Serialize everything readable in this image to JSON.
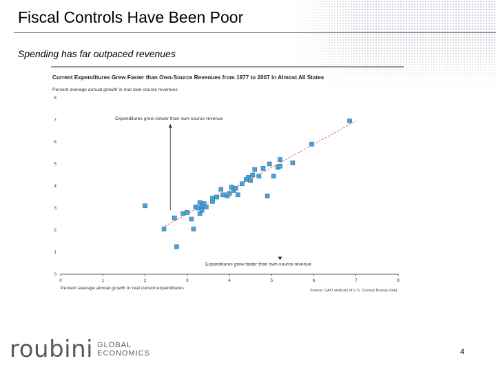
{
  "slide": {
    "title": "Fiscal Controls Have Been Poor",
    "subtitle": "Spending has far outpaced revenues",
    "page_number": "4"
  },
  "logo": {
    "wordmark": "roubini",
    "line1": "GLOBAL",
    "line2": "ECONOMICS"
  },
  "colors": {
    "marker_fill": "#4aa3d8",
    "marker_stroke": "#2a6f9a",
    "trend_line": "#e06c6c",
    "header_bar": "#9a9a9a"
  },
  "chart_data": {
    "type": "scatter",
    "title": "Current Expenditures Grew Faster than Own-Source Revenues from 1977 to 2007 in Almost All States",
    "ylabel": "Percent average annual growth in real own-source revenues",
    "xlabel": "Percent average annual growth in real current expenditures",
    "source": "Source: GAO analysis of U.S. Census Bureau data.",
    "xlim": [
      0,
      8
    ],
    "ylim": [
      0,
      8
    ],
    "x_ticks": [
      0,
      1,
      2,
      3,
      4,
      5,
      6,
      7,
      8
    ],
    "y_ticks": [
      0,
      1,
      2,
      3,
      4,
      5,
      6,
      7,
      8
    ],
    "x_tick_labels": [
      "0",
      "1",
      "2",
      "3",
      "4",
      "5",
      "6",
      "7",
      "8"
    ],
    "y_tick_labels": [
      "0",
      "1",
      "2",
      "3",
      "4",
      "5",
      "6",
      "7",
      "8"
    ],
    "grid": false,
    "trend_line": {
      "from": [
        2.4,
        2.1
      ],
      "to": [
        7.0,
        6.95
      ]
    },
    "annotations": [
      {
        "text": "Expenditures grew slower than own-source revenue",
        "arrow": "up",
        "anchor": [
          2.6,
          7.0
        ],
        "arrow_from": [
          2.6,
          2.9
        ],
        "arrow_to": [
          2.6,
          6.7
        ]
      },
      {
        "text": "Expenditures grew faster than own-source revenue",
        "arrow": "down",
        "anchor": [
          4.9,
          0.45
        ],
        "arrow_from": [
          5.2,
          0.9
        ],
        "arrow_to": [
          5.2,
          0.7
        ]
      }
    ],
    "points": [
      {
        "x": 2.0,
        "y": 3.1
      },
      {
        "x": 2.45,
        "y": 2.05
      },
      {
        "x": 2.7,
        "y": 2.55
      },
      {
        "x": 2.75,
        "y": 1.25
      },
      {
        "x": 2.9,
        "y": 2.75
      },
      {
        "x": 3.0,
        "y": 2.8
      },
      {
        "x": 3.1,
        "y": 2.5
      },
      {
        "x": 3.15,
        "y": 2.05
      },
      {
        "x": 3.2,
        "y": 3.05
      },
      {
        "x": 3.25,
        "y": 3.0
      },
      {
        "x": 3.3,
        "y": 3.25
      },
      {
        "x": 3.35,
        "y": 3.1
      },
      {
        "x": 3.3,
        "y": 2.75
      },
      {
        "x": 3.35,
        "y": 2.9
      },
      {
        "x": 3.4,
        "y": 3.2
      },
      {
        "x": 3.45,
        "y": 3.05
      },
      {
        "x": 3.6,
        "y": 3.3
      },
      {
        "x": 3.6,
        "y": 3.45
      },
      {
        "x": 3.7,
        "y": 3.5
      },
      {
        "x": 3.8,
        "y": 3.85
      },
      {
        "x": 3.85,
        "y": 3.6
      },
      {
        "x": 3.95,
        "y": 3.55
      },
      {
        "x": 4.0,
        "y": 3.65
      },
      {
        "x": 4.05,
        "y": 3.95
      },
      {
        "x": 4.1,
        "y": 3.8
      },
      {
        "x": 4.15,
        "y": 3.9
      },
      {
        "x": 4.2,
        "y": 3.6
      },
      {
        "x": 4.3,
        "y": 4.1
      },
      {
        "x": 4.4,
        "y": 4.3
      },
      {
        "x": 4.45,
        "y": 4.4
      },
      {
        "x": 4.5,
        "y": 4.25
      },
      {
        "x": 4.55,
        "y": 4.5
      },
      {
        "x": 4.6,
        "y": 4.75
      },
      {
        "x": 4.7,
        "y": 4.45
      },
      {
        "x": 4.8,
        "y": 4.8
      },
      {
        "x": 4.9,
        "y": 3.55
      },
      {
        "x": 4.95,
        "y": 5.0
      },
      {
        "x": 5.05,
        "y": 4.45
      },
      {
        "x": 5.15,
        "y": 4.85
      },
      {
        "x": 5.2,
        "y": 5.2
      },
      {
        "x": 5.2,
        "y": 4.9
      },
      {
        "x": 5.5,
        "y": 5.05
      },
      {
        "x": 5.95,
        "y": 5.9
      },
      {
        "x": 6.85,
        "y": 6.95
      }
    ]
  }
}
